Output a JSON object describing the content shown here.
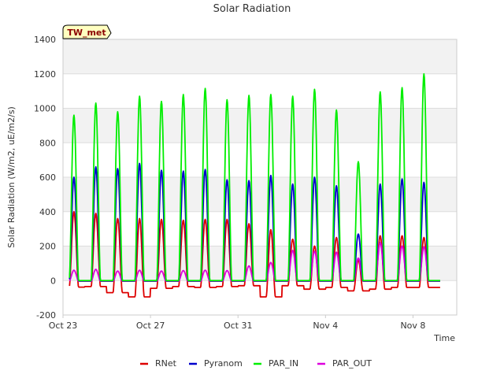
{
  "chart_data": {
    "type": "line",
    "title": "Solar Radiation",
    "xlabel": "Time",
    "ylabel": "Solar Radiation (W/m2, uE/m2/s)",
    "badge": "TW_met",
    "xlim": [
      0,
      18
    ],
    "ylim": [
      -200,
      1400
    ],
    "yticks": [
      -200,
      0,
      200,
      400,
      600,
      800,
      1000,
      1200,
      1400
    ],
    "xticks": [
      {
        "day": 0,
        "label": "Oct 23"
      },
      {
        "day": 4,
        "label": "Oct 27"
      },
      {
        "day": 8,
        "label": "Oct 31"
      },
      {
        "day": 12,
        "label": "Nov 4"
      },
      {
        "day": 16,
        "label": "Nov 8"
      }
    ],
    "grid": true,
    "legend_position": "bottom",
    "days": [
      0.8,
      1.8,
      2.8,
      3.8,
      4.8,
      5.8,
      6.8,
      7.8,
      8.8,
      9.8,
      10.8,
      11.8,
      12.8,
      13.8,
      14.8,
      15.8,
      16.8
    ],
    "series": [
      {
        "name": "RNet",
        "color": "#dd0000",
        "baseline": -40,
        "peaks": [
          400,
          390,
          360,
          360,
          355,
          350,
          355,
          355,
          330,
          295,
          240,
          200,
          250,
          120,
          260,
          260,
          250
        ],
        "night": [
          -38,
          -35,
          -70,
          -95,
          -45,
          -35,
          -40,
          -35,
          -30,
          -95,
          -30,
          -50,
          -40,
          -60,
          -50,
          -40,
          -40
        ]
      },
      {
        "name": "Pyranom",
        "color": "#0000cc",
        "baseline": -2,
        "peaks": [
          600,
          660,
          650,
          680,
          640,
          635,
          645,
          585,
          580,
          610,
          560,
          600,
          550,
          270,
          560,
          590,
          570
        ],
        "night": [
          -2,
          -2,
          -2,
          -2,
          -2,
          -2,
          -2,
          -2,
          -2,
          -2,
          -2,
          -2,
          -2,
          -2,
          -2,
          -2,
          -2
        ]
      },
      {
        "name": "PAR_IN",
        "color": "#00ee00",
        "baseline": 0,
        "peaks": [
          960,
          1030,
          980,
          1070,
          1040,
          1080,
          1115,
          1050,
          1075,
          1080,
          1070,
          1110,
          990,
          690,
          1095,
          1120,
          1200
        ],
        "night": [
          0,
          0,
          0,
          0,
          0,
          0,
          0,
          0,
          0,
          0,
          0,
          0,
          0,
          0,
          0,
          0,
          0
        ]
      },
      {
        "name": "PAR_OUT",
        "color": "#dd00dd",
        "baseline": -4,
        "peaks": [
          60,
          65,
          55,
          60,
          55,
          58,
          60,
          58,
          85,
          105,
          175,
          170,
          165,
          130,
          220,
          200,
          195
        ],
        "night": [
          -4,
          -4,
          -4,
          -4,
          -4,
          -4,
          -4,
          -4,
          -4,
          -4,
          -4,
          -4,
          -4,
          -4,
          -4,
          -4,
          -4
        ]
      }
    ]
  }
}
